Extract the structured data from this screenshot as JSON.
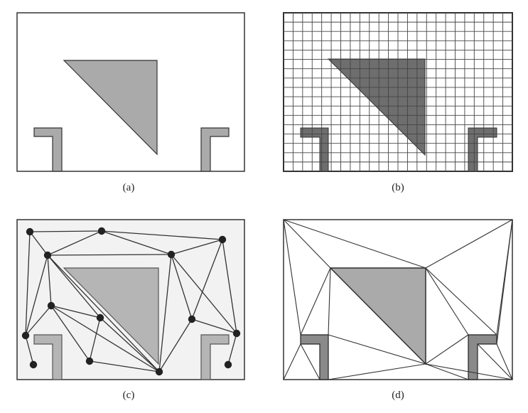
{
  "captions": {
    "a": "(a)",
    "b": "(b)",
    "c": "(c)",
    "d": "(d)"
  },
  "colors": {
    "frame": "#333333",
    "obstacle_light": "#aaaaaa",
    "obstacle_dark": "#6e6e6e",
    "grid_line": "#444444",
    "node": "#222222",
    "edge": "#333333",
    "background": "#ffffff",
    "panel_c_background": "#f2f2f2"
  }
}
